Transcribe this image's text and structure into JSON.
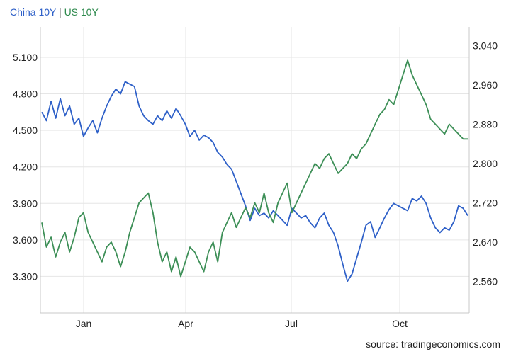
{
  "legend": {
    "series1": "China 10Y",
    "separator": " | ",
    "series2": "US 10Y"
  },
  "source": "source: tradingeconomics.com",
  "colors": {
    "china": "#2e60c8",
    "us": "#3d8f57",
    "grid": "#e6e6e6",
    "axis": "#c8c8c8"
  },
  "chart_data": {
    "type": "line",
    "title": "",
    "x_ticks": [
      "Jan",
      "Apr",
      "Jul",
      "Oct"
    ],
    "grid": true,
    "legend_position": "top-left",
    "y_left": {
      "ticks": [
        "5.100",
        "4.800",
        "4.500",
        "4.200",
        "3.900",
        "3.600",
        "3.300"
      ],
      "range": [
        3.0,
        5.35
      ]
    },
    "y_right": {
      "ticks": [
        "3.040",
        "2.960",
        "2.880",
        "2.800",
        "2.720",
        "2.640",
        "2.560"
      ],
      "range": [
        2.496,
        3.078
      ]
    },
    "series": [
      {
        "name": "China 10Y",
        "axis": "left",
        "values": [
          4.65,
          4.58,
          4.74,
          4.6,
          4.76,
          4.62,
          4.7,
          4.55,
          4.6,
          4.45,
          4.52,
          4.58,
          4.48,
          4.6,
          4.7,
          4.78,
          4.84,
          4.8,
          4.9,
          4.88,
          4.86,
          4.7,
          4.62,
          4.58,
          4.55,
          4.62,
          4.58,
          4.66,
          4.6,
          4.68,
          4.62,
          4.55,
          4.45,
          4.5,
          4.42,
          4.46,
          4.44,
          4.4,
          4.32,
          4.28,
          4.22,
          4.18,
          4.08,
          3.98,
          3.88,
          3.76,
          3.86,
          3.8,
          3.82,
          3.78,
          3.84,
          3.8,
          3.76,
          3.72,
          3.86,
          3.82,
          3.78,
          3.8,
          3.74,
          3.7,
          3.78,
          3.82,
          3.72,
          3.66,
          3.55,
          3.4,
          3.26,
          3.32,
          3.45,
          3.58,
          3.72,
          3.75,
          3.62,
          3.7,
          3.78,
          3.85,
          3.9,
          3.88,
          3.86,
          3.84,
          3.94,
          3.92,
          3.96,
          3.9,
          3.78,
          3.7,
          3.66,
          3.7,
          3.68,
          3.75,
          3.88,
          3.86,
          3.8
        ]
      },
      {
        "name": "US 10Y",
        "axis": "right",
        "values": [
          2.68,
          2.63,
          2.65,
          2.61,
          2.64,
          2.66,
          2.62,
          2.65,
          2.69,
          2.7,
          2.66,
          2.64,
          2.62,
          2.6,
          2.63,
          2.64,
          2.62,
          2.59,
          2.62,
          2.66,
          2.69,
          2.72,
          2.73,
          2.74,
          2.7,
          2.64,
          2.6,
          2.62,
          2.58,
          2.61,
          2.57,
          2.6,
          2.63,
          2.62,
          2.6,
          2.58,
          2.62,
          2.64,
          2.6,
          2.66,
          2.68,
          2.7,
          2.67,
          2.69,
          2.71,
          2.69,
          2.72,
          2.7,
          2.74,
          2.7,
          2.68,
          2.72,
          2.74,
          2.76,
          2.7,
          2.72,
          2.74,
          2.76,
          2.78,
          2.8,
          2.79,
          2.81,
          2.82,
          2.8,
          2.78,
          2.79,
          2.8,
          2.82,
          2.81,
          2.83,
          2.84,
          2.86,
          2.88,
          2.9,
          2.91,
          2.93,
          2.92,
          2.95,
          2.98,
          3.01,
          2.98,
          2.96,
          2.94,
          2.92,
          2.89,
          2.88,
          2.87,
          2.86,
          2.88,
          2.87,
          2.86,
          2.85,
          2.85
        ]
      }
    ]
  }
}
